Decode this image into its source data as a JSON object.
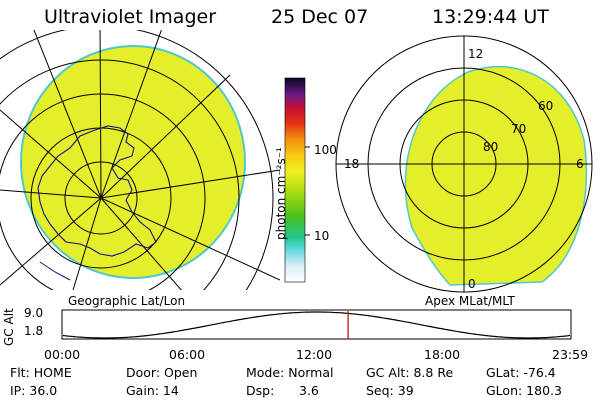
{
  "header": {
    "instrument": "Ultraviolet Imager",
    "date": "25 Dec 07",
    "time": "13:29:44 UT"
  },
  "left_panel": {
    "caption": "Geographic Lat/Lon"
  },
  "right_panel": {
    "caption": "Apex MLat/MLT",
    "mlt_labels": {
      "top": "12",
      "left": "18",
      "right": "6",
      "bottom": "0"
    },
    "mlat_labels": [
      "60",
      "70",
      "80"
    ]
  },
  "colorbar": {
    "unit_label": "photon cm⁻²s⁻¹",
    "tick_100": "100",
    "tick_10": "10"
  },
  "altitude_plot": {
    "ylabel": "GC Alt",
    "ytick_top": "9.0",
    "ytick_bottom": "1.8",
    "xticks": [
      "00:00",
      "06:00",
      "12:00",
      "18:00",
      "23:59"
    ],
    "current_time_fraction": 0.5623
  },
  "status": {
    "flt": "Flt: HOME",
    "ip": "IP: 36.0",
    "door": "Door: Open",
    "gain": "Gain: 14",
    "mode": "Mode: Normal",
    "dsp_label": "Dsp:",
    "dsp_value": "3.6",
    "gc_alt": "GC Alt: 8.8 Re",
    "seq": "Seq: 39",
    "glat": "GLat: -76.4",
    "glon": "GLon: 180.3"
  },
  "colors": {
    "image_fill": "#e4ee2a",
    "edge": "#4ec8d0",
    "grid": "#000000",
    "coast": "#10147a",
    "marker": "#c00000"
  }
}
